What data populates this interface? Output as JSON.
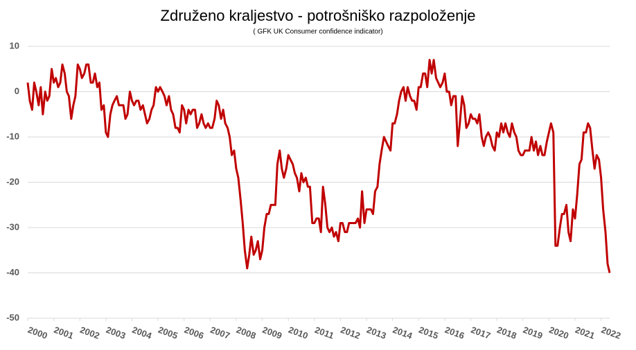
{
  "chart_data": {
    "type": "line",
    "title": "Združeno kraljestvo - potrošniško razpoloženje",
    "subtitle": "( GFK UK Consumer confidence indicator)",
    "color": "#c00000",
    "xlim": [
      2000,
      2022.33
    ],
    "xticks": [
      2000,
      2001,
      2002,
      2003,
      2004,
      2005,
      2006,
      2007,
      2008,
      2009,
      2010,
      2011,
      2012,
      2013,
      2014,
      2015,
      2016,
      2017,
      2018,
      2019,
      2020,
      2021,
      2022
    ],
    "ylim": [
      -50,
      10
    ],
    "yticks": [
      -50,
      -40,
      -30,
      -20,
      -10,
      0,
      10
    ],
    "grid": true,
    "x": [
      2000,
      2000.08,
      2000.17,
      2000.25,
      2000.33,
      2000.42,
      2000.5,
      2000.58,
      2000.67,
      2000.75,
      2000.83,
      2000.92,
      2001,
      2001.08,
      2001.17,
      2001.25,
      2001.33,
      2001.42,
      2001.5,
      2001.58,
      2001.67,
      2001.75,
      2001.83,
      2001.92,
      2002,
      2002.08,
      2002.17,
      2002.25,
      2002.33,
      2002.42,
      2002.5,
      2002.58,
      2002.67,
      2002.75,
      2002.83,
      2002.92,
      2003,
      2003.08,
      2003.17,
      2003.25,
      2003.33,
      2003.42,
      2003.5,
      2003.58,
      2003.67,
      2003.75,
      2003.83,
      2003.92,
      2004,
      2004.08,
      2004.17,
      2004.25,
      2004.33,
      2004.42,
      2004.5,
      2004.58,
      2004.67,
      2004.75,
      2004.83,
      2004.92,
      2005,
      2005.08,
      2005.17,
      2005.25,
      2005.33,
      2005.42,
      2005.5,
      2005.58,
      2005.67,
      2005.75,
      2005.83,
      2005.92,
      2006,
      2006.08,
      2006.17,
      2006.25,
      2006.33,
      2006.42,
      2006.5,
      2006.58,
      2006.67,
      2006.75,
      2006.83,
      2006.92,
      2007,
      2007.08,
      2007.17,
      2007.25,
      2007.33,
      2007.42,
      2007.5,
      2007.58,
      2007.67,
      2007.75,
      2007.83,
      2007.92,
      2008,
      2008.08,
      2008.17,
      2008.25,
      2008.33,
      2008.42,
      2008.5,
      2008.58,
      2008.67,
      2008.75,
      2008.83,
      2008.92,
      2009,
      2009.08,
      2009.17,
      2009.25,
      2009.33,
      2009.42,
      2009.5,
      2009.58,
      2009.67,
      2009.75,
      2009.83,
      2009.92,
      2010,
      2010.08,
      2010.17,
      2010.25,
      2010.33,
      2010.42,
      2010.5,
      2010.58,
      2010.67,
      2010.75,
      2010.83,
      2010.92,
      2011,
      2011.08,
      2011.17,
      2011.25,
      2011.33,
      2011.42,
      2011.5,
      2011.58,
      2011.67,
      2011.75,
      2011.83,
      2011.92,
      2012,
      2012.08,
      2012.17,
      2012.25,
      2012.33,
      2012.42,
      2012.5,
      2012.58,
      2012.67,
      2012.75,
      2012.83,
      2012.92,
      2013,
      2013.08,
      2013.17,
      2013.25,
      2013.33,
      2013.42,
      2013.5,
      2013.58,
      2013.67,
      2013.75,
      2013.83,
      2013.92,
      2014,
      2014.08,
      2014.17,
      2014.25,
      2014.33,
      2014.42,
      2014.5,
      2014.58,
      2014.67,
      2014.75,
      2014.83,
      2014.92,
      2015,
      2015.08,
      2015.17,
      2015.25,
      2015.33,
      2015.42,
      2015.5,
      2015.58,
      2015.67,
      2015.75,
      2015.83,
      2015.92,
      2016,
      2016.08,
      2016.17,
      2016.25,
      2016.33,
      2016.42,
      2016.5,
      2016.58,
      2016.67,
      2016.75,
      2016.83,
      2016.92,
      2017,
      2017.08,
      2017.17,
      2017.25,
      2017.33,
      2017.42,
      2017.5,
      2017.58,
      2017.67,
      2017.75,
      2017.83,
      2017.92,
      2018,
      2018.08,
      2018.17,
      2018.25,
      2018.33,
      2018.42,
      2018.5,
      2018.58,
      2018.67,
      2018.75,
      2018.83,
      2018.92,
      2019,
      2019.08,
      2019.17,
      2019.25,
      2019.33,
      2019.42,
      2019.5,
      2019.58,
      2019.67,
      2019.75,
      2019.83,
      2019.92,
      2020,
      2020.08,
      2020.17,
      2020.25,
      2020.33,
      2020.42,
      2020.5,
      2020.58,
      2020.67,
      2020.75,
      2020.83,
      2020.92,
      2021,
      2021.08,
      2021.17,
      2021.25,
      2021.33,
      2021.42,
      2021.5,
      2021.58,
      2021.67,
      2021.75,
      2021.83,
      2021.92,
      2022,
      2022.08,
      2022.17,
      2022.25,
      2022.33
    ],
    "values": [
      2,
      -2,
      -4,
      2,
      0,
      -3,
      1,
      -5,
      0,
      -2,
      -1,
      5,
      2,
      3,
      1,
      2,
      6,
      4,
      0,
      -1,
      -6,
      -3,
      -1,
      6,
      5,
      3,
      4,
      6,
      6,
      2,
      2,
      4,
      1,
      2,
      -4,
      -3,
      -9,
      -10,
      -5,
      -3,
      -2,
      -1,
      -3,
      -3,
      -3,
      -6,
      -5,
      0,
      -2,
      -3,
      -2,
      -2,
      -4,
      -3,
      -5,
      -7,
      -6,
      -4,
      -3,
      1,
      0,
      1,
      0,
      -1,
      -3,
      -1,
      -4,
      -5,
      -8,
      -8,
      -9,
      -3,
      -4,
      -7,
      -4,
      -5,
      -4,
      -4,
      -8,
      -7,
      -5,
      -7,
      -8,
      -7,
      -8,
      -8,
      -6,
      -2,
      -3,
      -6,
      -4,
      -7,
      -8,
      -10,
      -14,
      -13,
      -17,
      -19,
      -24,
      -29,
      -35,
      -39,
      -36,
      -32,
      -36,
      -35,
      -33,
      -37,
      -35,
      -30,
      -27,
      -27,
      -25,
      -25,
      -25,
      -16,
      -13,
      -17,
      -19,
      -17,
      -14,
      -15,
      -16,
      -18,
      -19,
      -22,
      -18,
      -20,
      -19,
      -21,
      -21,
      -29,
      -29,
      -28,
      -28,
      -31,
      -21,
      -25,
      -30,
      -31,
      -30,
      -32,
      -31,
      -33,
      -29,
      -29,
      -31,
      -31,
      -29,
      -29,
      -29,
      -29,
      -28,
      -30,
      -22,
      -29,
      -26,
      -26,
      -26,
      -27,
      -22,
      -21,
      -16,
      -13,
      -10,
      -11,
      -12,
      -13,
      -7,
      -7,
      -5,
      -2,
      0,
      1,
      -2,
      1,
      -1,
      -2,
      -2,
      -4,
      1,
      1,
      4,
      4,
      1,
      7,
      4,
      7,
      3,
      2,
      1,
      2,
      4,
      0,
      0,
      -3,
      -1,
      -1,
      -12,
      -7,
      -1,
      -3,
      -8,
      -7,
      -5,
      -6,
      -6,
      -7,
      -5,
      -10,
      -12,
      -10,
      -9,
      -10,
      -12,
      -13,
      -9,
      -10,
      -7,
      -9,
      -7,
      -9,
      -10,
      -7,
      -9,
      -10,
      -13,
      -14,
      -14,
      -13,
      -13,
      -13,
      -10,
      -13,
      -11,
      -14,
      -12,
      -14,
      -14,
      -11,
      -9,
      -7,
      -9,
      -34,
      -34,
      -30,
      -27,
      -27,
      -25,
      -31,
      -33,
      -26,
      -28,
      -23,
      -16,
      -15,
      -9,
      -9,
      -7,
      -8,
      -13,
      -17,
      -14,
      -15,
      -19,
      -26,
      -31,
      -38,
      -40
    ]
  }
}
